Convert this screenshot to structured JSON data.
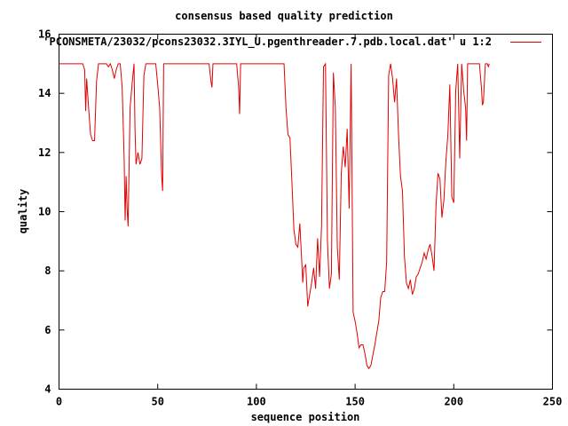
{
  "chart_data": {
    "type": "line",
    "title": "consensus based quality prediction",
    "xlabel": "sequence position",
    "ylabel": "quality",
    "xlim": [
      0,
      250
    ],
    "ylim": [
      4,
      16
    ],
    "xticks": [
      0,
      50,
      100,
      150,
      200,
      250
    ],
    "yticks": [
      4,
      6,
      8,
      10,
      12,
      14,
      16
    ],
    "grid": false,
    "legend_position": "top-right",
    "series": [
      {
        "name": "'PCONSMETA/23032/pcons23032.3IYL_U.pgenthreader.7.pdb.local.dat' u 1:2",
        "color": "#e00000",
        "points": [
          [
            0,
            15
          ],
          [
            6,
            15
          ],
          [
            12,
            15
          ],
          [
            13,
            14.8
          ],
          [
            13.5,
            13.4
          ],
          [
            14,
            14.5
          ],
          [
            15,
            13.5
          ],
          [
            16,
            12.6
          ],
          [
            17,
            12.4
          ],
          [
            18,
            12.4
          ],
          [
            19,
            14.4
          ],
          [
            20,
            15
          ],
          [
            24,
            15
          ],
          [
            25,
            14.9
          ],
          [
            26,
            15
          ],
          [
            27,
            14.8
          ],
          [
            28,
            14.5
          ],
          [
            29,
            14.8
          ],
          [
            30,
            15
          ],
          [
            31,
            15
          ],
          [
            32,
            14.2
          ],
          [
            33,
            11.8
          ],
          [
            33.5,
            9.7
          ],
          [
            34,
            11.2
          ],
          [
            34.5,
            10.1
          ],
          [
            35,
            9.5
          ],
          [
            36,
            13.5
          ],
          [
            37,
            14.3
          ],
          [
            38,
            15
          ],
          [
            38.5,
            12.8
          ],
          [
            39,
            11.6
          ],
          [
            40,
            12
          ],
          [
            41,
            11.6
          ],
          [
            42,
            11.8
          ],
          [
            43,
            14.6
          ],
          [
            44,
            15
          ],
          [
            49,
            15
          ],
          [
            50,
            14.3
          ],
          [
            51,
            13.5
          ],
          [
            52,
            11.2
          ],
          [
            52.5,
            10.7
          ],
          [
            53,
            15
          ],
          [
            76,
            15
          ],
          [
            77,
            14.4
          ],
          [
            77.5,
            14.2
          ],
          [
            78,
            15
          ],
          [
            90,
            15
          ],
          [
            91,
            14.2
          ],
          [
            91.5,
            13.3
          ],
          [
            92,
            15
          ],
          [
            114,
            15
          ],
          [
            115,
            13.5
          ],
          [
            116,
            12.6
          ],
          [
            117,
            12.5
          ],
          [
            118,
            11
          ],
          [
            119,
            9.4
          ],
          [
            120,
            8.9
          ],
          [
            121,
            8.8
          ],
          [
            122,
            9.6
          ],
          [
            123,
            8.3
          ],
          [
            123.5,
            7.6
          ],
          [
            124,
            8.1
          ],
          [
            125,
            8.2
          ],
          [
            126,
            6.8
          ],
          [
            127,
            7.2
          ],
          [
            128,
            7.6
          ],
          [
            129,
            8.1
          ],
          [
            130,
            7.4
          ],
          [
            131,
            9.1
          ],
          [
            132,
            7.8
          ],
          [
            133,
            9.5
          ],
          [
            134,
            14.9
          ],
          [
            135,
            15
          ],
          [
            136,
            9
          ],
          [
            137,
            7.4
          ],
          [
            138,
            7.9
          ],
          [
            139,
            14.7
          ],
          [
            140,
            13.5
          ],
          [
            141,
            8.8
          ],
          [
            142,
            7.7
          ],
          [
            143,
            11.3
          ],
          [
            144,
            12.2
          ],
          [
            145,
            11.5
          ],
          [
            146,
            12.8
          ],
          [
            147,
            10.1
          ],
          [
            148,
            15
          ],
          [
            149,
            6.6
          ],
          [
            150,
            6.3
          ],
          [
            151,
            5.9
          ],
          [
            152,
            5.4
          ],
          [
            153,
            5.5
          ],
          [
            154,
            5.5
          ],
          [
            155,
            5.2
          ],
          [
            156,
            4.8
          ],
          [
            157,
            4.7
          ],
          [
            158,
            4.8
          ],
          [
            160,
            5.5
          ],
          [
            162,
            6.3
          ],
          [
            163,
            7.1
          ],
          [
            164,
            7.3
          ],
          [
            165,
            7.3
          ],
          [
            166,
            8.3
          ],
          [
            167,
            14.6
          ],
          [
            168,
            15
          ],
          [
            169,
            14.5
          ],
          [
            170,
            13.7
          ],
          [
            171,
            14.5
          ],
          [
            172,
            12.6
          ],
          [
            173,
            11.2
          ],
          [
            174,
            10.7
          ],
          [
            175,
            8.5
          ],
          [
            176,
            7.6
          ],
          [
            177,
            7.4
          ],
          [
            178,
            7.7
          ],
          [
            179,
            7.2
          ],
          [
            180,
            7.4
          ],
          [
            181,
            7.8
          ],
          [
            182,
            7.9
          ],
          [
            183,
            8.1
          ],
          [
            184,
            8.3
          ],
          [
            185,
            8.6
          ],
          [
            186,
            8.4
          ],
          [
            187,
            8.7
          ],
          [
            188,
            8.9
          ],
          [
            189,
            8.5
          ],
          [
            190,
            8
          ],
          [
            191,
            10.2
          ],
          [
            192,
            11.3
          ],
          [
            193,
            11.1
          ],
          [
            194,
            9.8
          ],
          [
            195,
            10.4
          ],
          [
            196,
            11.7
          ],
          [
            197,
            12.6
          ],
          [
            198,
            14.3
          ],
          [
            199,
            10.5
          ],
          [
            200,
            10.3
          ],
          [
            201,
            14.1
          ],
          [
            202,
            15
          ],
          [
            203,
            11.8
          ],
          [
            204,
            15
          ],
          [
            205,
            14.1
          ],
          [
            206,
            13.5
          ],
          [
            206.5,
            12.4
          ],
          [
            207,
            15
          ],
          [
            213,
            15
          ],
          [
            214,
            14.2
          ],
          [
            214.5,
            13.6
          ],
          [
            215,
            13.7
          ],
          [
            216,
            15
          ],
          [
            217,
            15
          ],
          [
            217.5,
            14.9
          ],
          [
            218,
            15
          ]
        ]
      }
    ]
  }
}
